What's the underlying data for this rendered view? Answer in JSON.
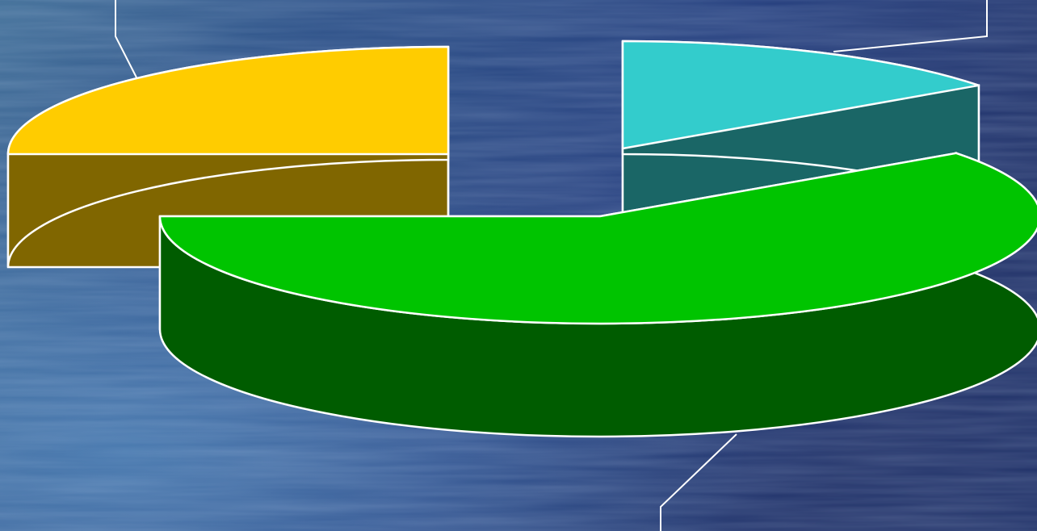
{
  "chart_data": {
    "type": "pie",
    "style": "3d-exploded",
    "background": "ocean-water-photo",
    "slices": [
      {
        "value": 25,
        "top_color": "#FFCC00",
        "side_color": "#806600"
      },
      {
        "value": 15,
        "top_color": "#33CCCC",
        "side_color": "#1A6666"
      },
      {
        "value": 60,
        "top_color": "#00C400",
        "side_color": "#005C00"
      }
    ],
    "outline_color": "#FFFFFF",
    "leader_line_color": "#FFFFFF"
  }
}
